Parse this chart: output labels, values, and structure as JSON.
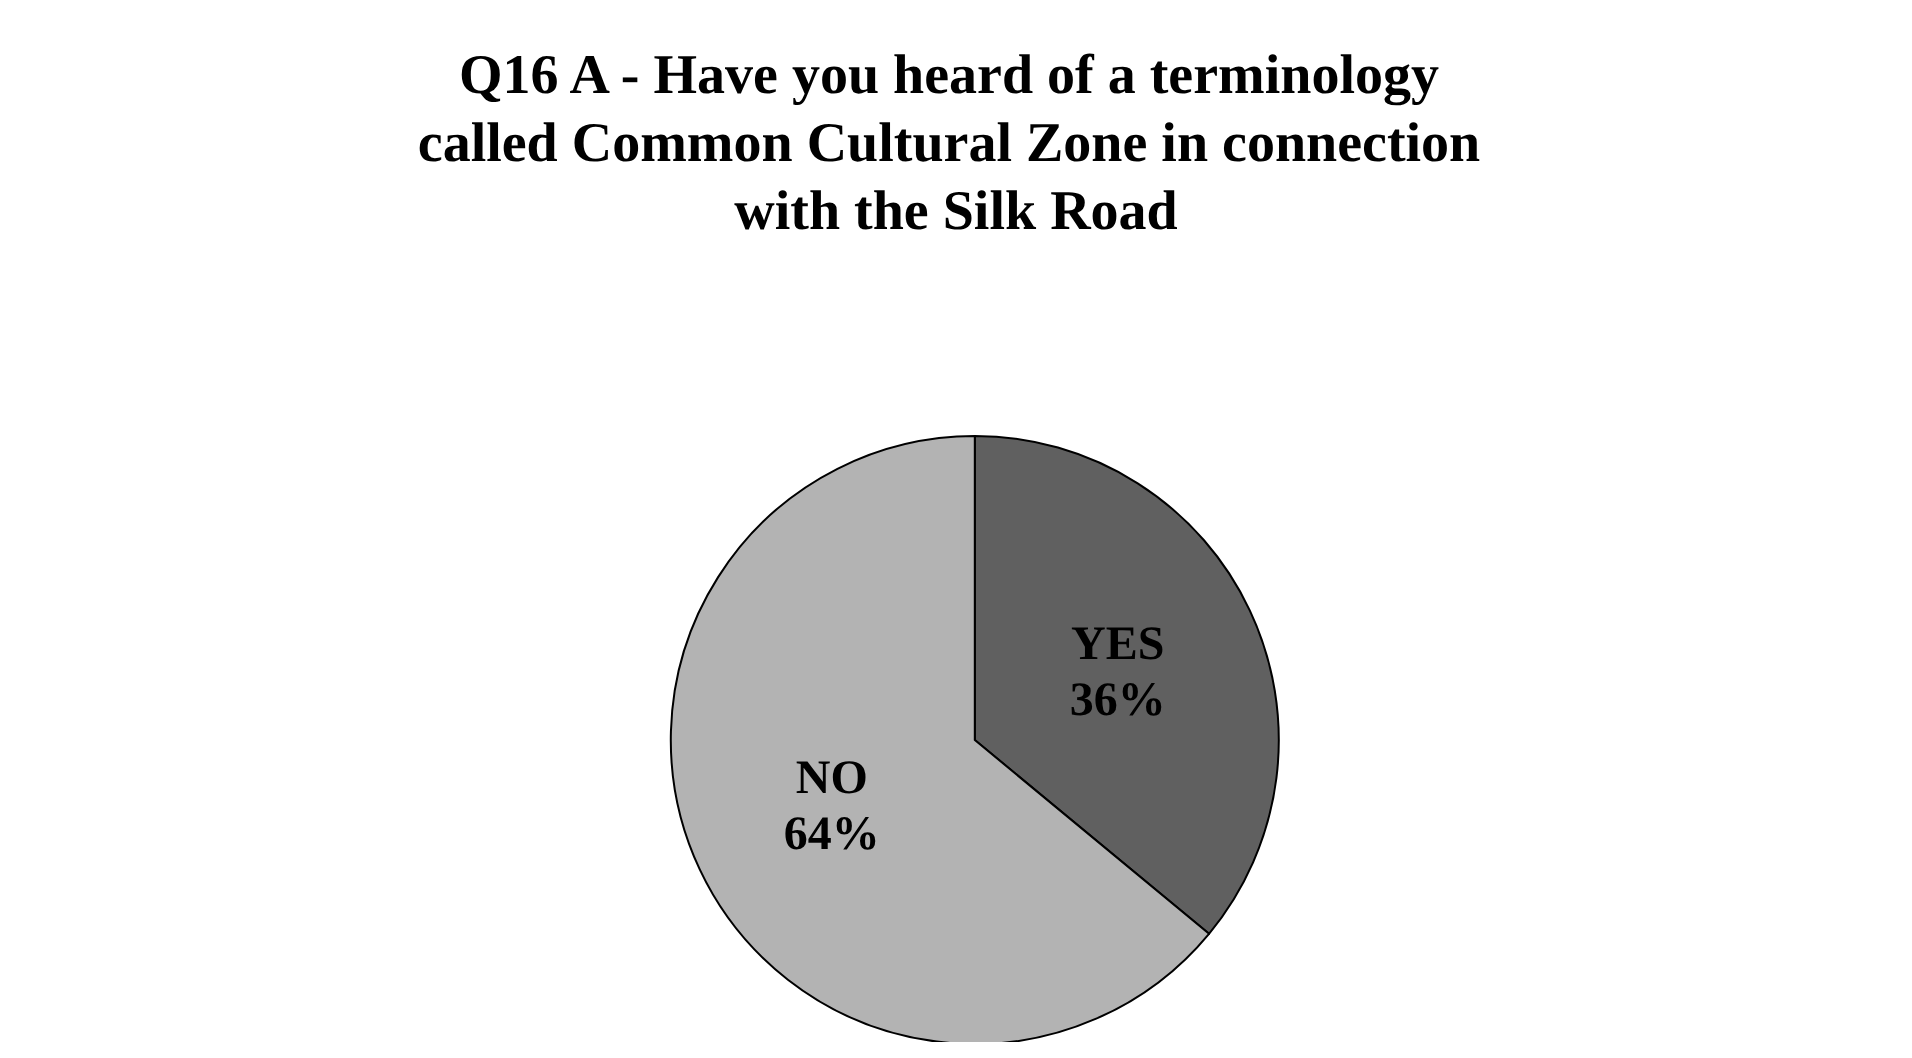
{
  "chart_data": {
    "type": "pie",
    "title": "Q16 A - Have you heard of a terminology called Common Cultural Zone in connection with the Silk Road",
    "categories": [
      "YES",
      "NO"
    ],
    "values": [
      36,
      64
    ],
    "colors": [
      "#606060",
      "#b3b3b3"
    ],
    "value_labels": [
      "36%",
      "64%"
    ],
    "legend": false
  }
}
